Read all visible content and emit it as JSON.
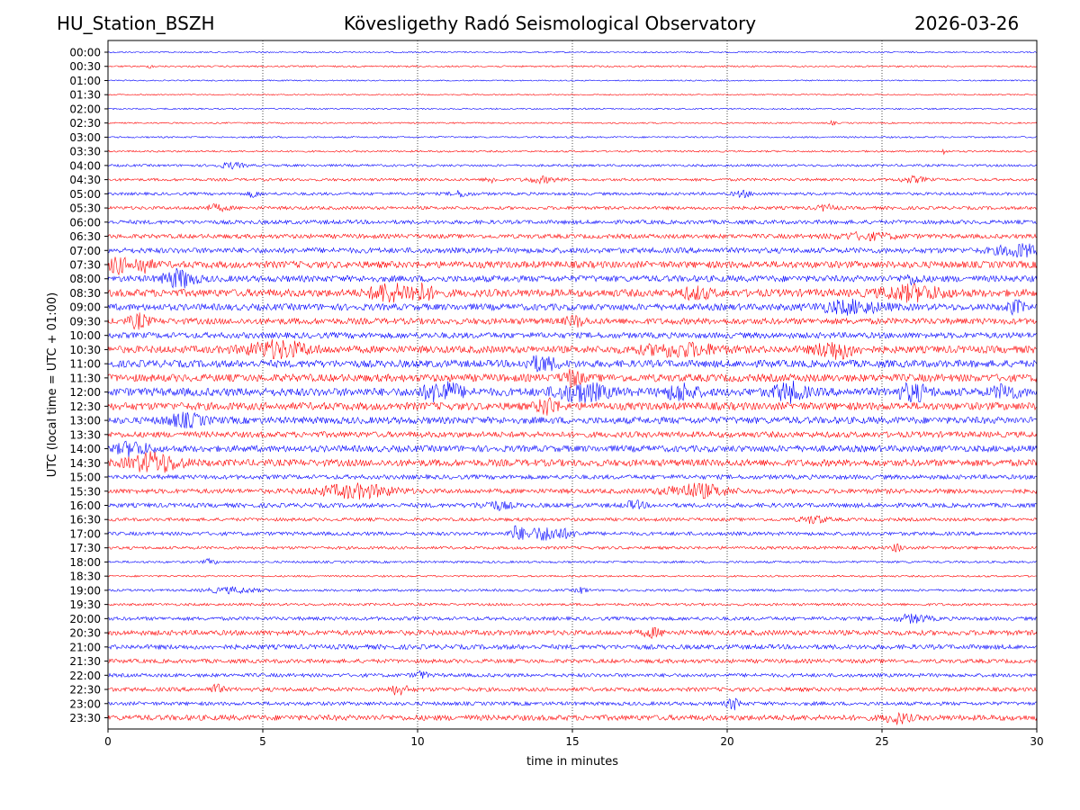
{
  "header": {
    "station": "HU_Station_BSZH",
    "observatory": "Kövesligethy Radó Seismological Observatory",
    "date": "2026-03-26"
  },
  "chart_data": {
    "type": "line",
    "title": "Kövesligethy Radó Seismological Observatory",
    "xlabel": "time in minutes",
    "ylabel": "UTC (local time = UTC + 01:00)",
    "xlim": [
      0,
      30
    ],
    "xticks": [
      0,
      5,
      10,
      15,
      20,
      25,
      30
    ],
    "grid_vertical": [
      5,
      10,
      15,
      20,
      25
    ],
    "colors": [
      "#0000ff",
      "#ff0000"
    ],
    "rows": [
      {
        "label": "00:00",
        "amp": 0.8,
        "events": []
      },
      {
        "label": "00:30",
        "amp": 0.9,
        "events": [
          [
            1.4,
            2.0,
            0.1
          ]
        ]
      },
      {
        "label": "01:00",
        "amp": 0.7,
        "events": []
      },
      {
        "label": "01:30",
        "amp": 0.7,
        "events": []
      },
      {
        "label": "02:00",
        "amp": 0.8,
        "events": []
      },
      {
        "label": "02:30",
        "amp": 0.8,
        "events": [
          [
            23.4,
            2.0,
            0.1
          ]
        ]
      },
      {
        "label": "03:00",
        "amp": 0.9,
        "events": []
      },
      {
        "label": "03:30",
        "amp": 1.0,
        "events": [
          [
            27.0,
            3.0,
            0.1
          ]
        ]
      },
      {
        "label": "04:00",
        "amp": 1.3,
        "events": [
          [
            4.0,
            3.0,
            0.4
          ]
        ]
      },
      {
        "label": "04:30",
        "amp": 1.5,
        "events": [
          [
            12.4,
            3.0,
            0.2
          ],
          [
            14.0,
            3.0,
            0.5
          ],
          [
            26.0,
            3.0,
            0.4
          ]
        ]
      },
      {
        "label": "05:00",
        "amp": 1.6,
        "events": [
          [
            4.7,
            4.0,
            0.15
          ],
          [
            11.4,
            3.0,
            0.3
          ],
          [
            20.5,
            3.0,
            0.3
          ]
        ]
      },
      {
        "label": "05:30",
        "amp": 1.8,
        "events": [
          [
            3.5,
            3.0,
            0.4
          ],
          [
            23.2,
            3.0,
            0.3
          ]
        ]
      },
      {
        "label": "06:00",
        "amp": 2.2,
        "events": []
      },
      {
        "label": "06:30",
        "amp": 2.4,
        "events": [
          [
            24.5,
            3.0,
            1.0
          ]
        ]
      },
      {
        "label": "07:00",
        "amp": 3.0,
        "events": [
          [
            29.5,
            6.0,
            0.8
          ]
        ]
      },
      {
        "label": "07:30",
        "amp": 3.8,
        "events": [
          [
            0.3,
            8.0,
            0.3
          ],
          [
            1.1,
            8.0,
            0.3
          ]
        ]
      },
      {
        "label": "08:00",
        "amp": 3.5,
        "events": [
          [
            2.3,
            9.0,
            0.5
          ],
          [
            26.0,
            4.0,
            0.3
          ]
        ]
      },
      {
        "label": "08:30",
        "amp": 4.2,
        "events": [
          [
            9.0,
            9.0,
            0.5
          ],
          [
            10.0,
            9.0,
            0.5
          ],
          [
            26.0,
            7.0,
            1.0
          ],
          [
            19.0,
            5.0,
            0.5
          ]
        ]
      },
      {
        "label": "09:00",
        "amp": 3.6,
        "events": [
          [
            24.0,
            6.0,
            1.0
          ],
          [
            29.3,
            6.0,
            0.3
          ]
        ]
      },
      {
        "label": "09:30",
        "amp": 3.4,
        "events": [
          [
            1.0,
            7.0,
            0.3
          ],
          [
            15.1,
            5.0,
            0.3
          ]
        ]
      },
      {
        "label": "10:00",
        "amp": 3.2,
        "events": []
      },
      {
        "label": "10:30",
        "amp": 4.0,
        "events": [
          [
            5.5,
            8.0,
            1.0
          ],
          [
            18.5,
            6.0,
            1.2
          ],
          [
            23.5,
            9.0,
            0.6
          ]
        ]
      },
      {
        "label": "11:00",
        "amp": 4.0,
        "events": [
          [
            14.0,
            7.0,
            0.5
          ]
        ]
      },
      {
        "label": "11:30",
        "amp": 4.2,
        "events": [
          [
            15.0,
            8.0,
            0.3
          ]
        ]
      },
      {
        "label": "12:00",
        "amp": 4.5,
        "events": [
          [
            10.8,
            10.0,
            0.6
          ],
          [
            15.3,
            9.0,
            0.8
          ],
          [
            18.5,
            8.0,
            0.5
          ],
          [
            22.0,
            9.0,
            0.5
          ],
          [
            26.0,
            8.0,
            0.5
          ],
          [
            29.0,
            7.0,
            0.4
          ]
        ]
      },
      {
        "label": "12:30",
        "amp": 4.2,
        "events": [
          [
            14.2,
            9.0,
            0.3
          ]
        ]
      },
      {
        "label": "13:00",
        "amp": 3.8,
        "events": [
          [
            2.5,
            6.0,
            0.6
          ]
        ]
      },
      {
        "label": "13:30",
        "amp": 3.2,
        "events": []
      },
      {
        "label": "14:00",
        "amp": 3.5,
        "events": [
          [
            0.8,
            7.0,
            0.5
          ]
        ]
      },
      {
        "label": "14:30",
        "amp": 3.8,
        "events": [
          [
            1.5,
            10.0,
            0.8
          ]
        ]
      },
      {
        "label": "15:00",
        "amp": 2.4,
        "events": []
      },
      {
        "label": "15:30",
        "amp": 2.6,
        "events": [
          [
            8.0,
            7.0,
            1.2
          ],
          [
            19.0,
            7.0,
            1.0
          ]
        ]
      },
      {
        "label": "16:00",
        "amp": 2.4,
        "events": [
          [
            12.5,
            4.0,
            0.5
          ],
          [
            17.0,
            4.0,
            0.3
          ]
        ]
      },
      {
        "label": "16:30",
        "amp": 1.8,
        "events": [
          [
            22.8,
            4.0,
            0.4
          ]
        ]
      },
      {
        "label": "17:00",
        "amp": 2.0,
        "events": [
          [
            13.2,
            7.0,
            0.2
          ],
          [
            14.2,
            7.0,
            0.8
          ]
        ]
      },
      {
        "label": "17:30",
        "amp": 1.6,
        "events": [
          [
            25.5,
            4.0,
            0.2
          ]
        ]
      },
      {
        "label": "18:00",
        "amp": 1.2,
        "events": [
          [
            3.3,
            3.0,
            0.2
          ]
        ]
      },
      {
        "label": "18:30",
        "amp": 1.0,
        "events": []
      },
      {
        "label": "19:00",
        "amp": 1.3,
        "events": [
          [
            4.0,
            3.0,
            0.8
          ],
          [
            15.3,
            3.0,
            0.2
          ]
        ]
      },
      {
        "label": "19:30",
        "amp": 1.4,
        "events": []
      },
      {
        "label": "20:00",
        "amp": 2.0,
        "events": [
          [
            26.0,
            4.0,
            0.5
          ]
        ]
      },
      {
        "label": "20:30",
        "amp": 2.8,
        "events": [
          [
            17.6,
            4.0,
            0.3
          ]
        ]
      },
      {
        "label": "21:00",
        "amp": 2.6,
        "events": []
      },
      {
        "label": "21:30",
        "amp": 2.2,
        "events": []
      },
      {
        "label": "22:00",
        "amp": 2.0,
        "events": [
          [
            10.1,
            4.0,
            0.2
          ]
        ]
      },
      {
        "label": "22:30",
        "amp": 2.2,
        "events": [
          [
            3.5,
            5.0,
            0.2
          ],
          [
            9.4,
            5.0,
            0.3
          ]
        ]
      },
      {
        "label": "23:00",
        "amp": 2.0,
        "events": [
          [
            20.2,
            6.0,
            0.2
          ]
        ]
      },
      {
        "label": "23:30",
        "amp": 3.0,
        "events": [
          [
            25.5,
            5.0,
            0.4
          ]
        ]
      }
    ]
  }
}
